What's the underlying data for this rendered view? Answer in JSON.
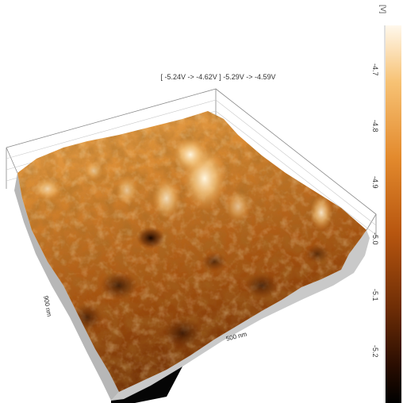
{
  "header": {
    "range_text": "[ -5.24V -> -4.62V ] -5.29V -> -4.59V"
  },
  "axes": {
    "y_label": "900 nm",
    "x_label": "500 nm"
  },
  "colorbar": {
    "unit": "[V]",
    "ticks": [
      {
        "label": "-4.7",
        "value": -4.7
      },
      {
        "label": "-4.8",
        "value": -4.8
      },
      {
        "label": "-4.9",
        "value": -4.9
      },
      {
        "label": "-5.0",
        "value": -5.0
      },
      {
        "label": "-5.1",
        "value": -5.1
      },
      {
        "label": "-5.2",
        "value": -5.2
      }
    ],
    "min": -5.29,
    "max": -4.59,
    "colors": [
      "#fff8ec",
      "#f7c274",
      "#e38a2d",
      "#b8560f",
      "#6e2d06",
      "#2a0d01",
      "#000000"
    ]
  },
  "surface": {
    "colors": {
      "highlight": "#fff3d2",
      "light": "#f2b45d",
      "mid": "#d4771f",
      "dark": "#8a3d08",
      "deep": "#2c0f02"
    }
  }
}
